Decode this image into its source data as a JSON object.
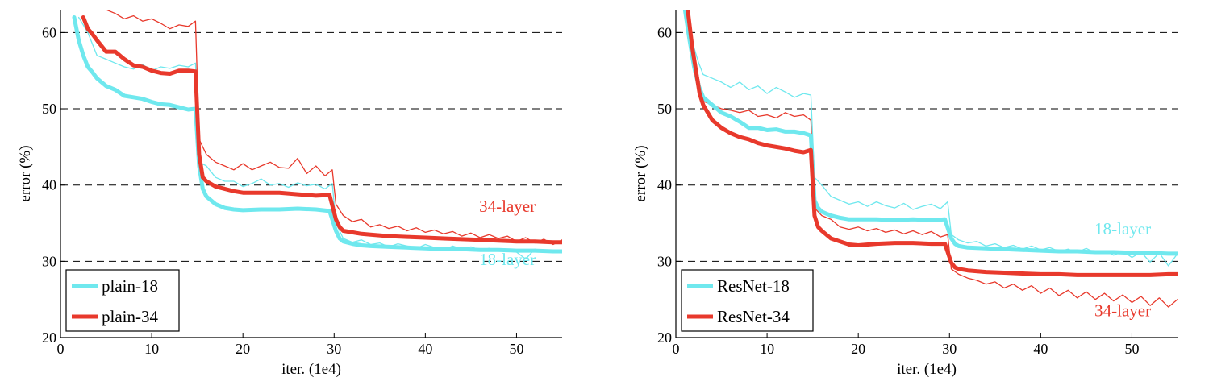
{
  "colors": {
    "cyan": "#6fe8ee",
    "red": "#e8392c",
    "grid": "#000000"
  },
  "chart_data": [
    {
      "type": "line",
      "xlabel": "iter. (1e4)",
      "ylabel": "error (%)",
      "xlim": [
        0,
        55
      ],
      "ylim": [
        20,
        63
      ],
      "xticks": [
        0,
        10,
        20,
        30,
        40,
        50
      ],
      "yticks": [
        20,
        30,
        40,
        50,
        60
      ],
      "grid": "horizontal dashed",
      "legend_position": "bottom-left",
      "annotations": [
        {
          "text": "34-layer",
          "x": 49,
          "y": 36.5,
          "color": "#e8392c"
        },
        {
          "text": "18-layer",
          "x": 49,
          "y": 29.5,
          "color": "#6fe8ee"
        }
      ],
      "series": [
        {
          "name": "plain-18",
          "style": "thick",
          "color": "#6fe8ee",
          "x": [
            1.5,
            2,
            2.5,
            3,
            3.5,
            4,
            5,
            6,
            7,
            8,
            9,
            10,
            11,
            12,
            13,
            14,
            14.8,
            15.2,
            15.6,
            16,
            17,
            18,
            19,
            20,
            22,
            24,
            26,
            28,
            29.5,
            30.2,
            30.6,
            31,
            32,
            33,
            34,
            36,
            38,
            40,
            42,
            44,
            46,
            48,
            50,
            52,
            54,
            55
          ],
          "y": [
            62,
            59,
            57,
            55.5,
            54.8,
            54,
            53,
            52.5,
            51.7,
            51.5,
            51.3,
            50.9,
            50.6,
            50.5,
            50.2,
            49.9,
            50,
            42.5,
            39.5,
            38.5,
            37.5,
            37,
            36.8,
            36.7,
            36.8,
            36.8,
            36.9,
            36.8,
            36.6,
            34,
            33,
            32.6,
            32.3,
            32.1,
            32,
            31.9,
            31.8,
            31.7,
            31.6,
            31.6,
            31.5,
            31.5,
            31.4,
            31.4,
            31.3,
            31.3
          ]
        },
        {
          "name": "plain-34",
          "style": "thick",
          "color": "#e8392c",
          "x": [
            2.5,
            3,
            3.5,
            4,
            5,
            6,
            7,
            8,
            9,
            10,
            11,
            12,
            13,
            14,
            14.8,
            15.2,
            15.6,
            16,
            17,
            18,
            19,
            20,
            22,
            24,
            26,
            28,
            29.5,
            30.2,
            30.6,
            31,
            32,
            33,
            34,
            36,
            38,
            40,
            42,
            44,
            46,
            48,
            50,
            52,
            54,
            55
          ],
          "y": [
            62,
            60.5,
            59.8,
            59,
            57.5,
            57.5,
            56.5,
            55.7,
            55.5,
            55,
            54.7,
            54.6,
            55,
            55,
            54.9,
            44,
            41,
            40.5,
            39.8,
            39.5,
            39.2,
            39,
            39,
            39,
            38.8,
            38.6,
            38.7,
            35.5,
            34.5,
            34,
            33.8,
            33.6,
            33.5,
            33.3,
            33.2,
            33.1,
            33,
            32.9,
            32.8,
            32.7,
            32.6,
            32.6,
            32.5,
            32.5
          ]
        },
        {
          "name": "plain-18 (val)",
          "style": "thin",
          "color": "#6fe8ee",
          "x": [
            2,
            3,
            4,
            5,
            6,
            7,
            8,
            9,
            10,
            11,
            12,
            13,
            14,
            14.8,
            15.2,
            16,
            17,
            18,
            19,
            20,
            21,
            22,
            23,
            24,
            25,
            26,
            27,
            28,
            29,
            29.8,
            30.2,
            31,
            32,
            33,
            34,
            35,
            36,
            37,
            38,
            39,
            40,
            41,
            42,
            43,
            44,
            45,
            46,
            47,
            48,
            49,
            50,
            51,
            52,
            53,
            54,
            55
          ],
          "y": [
            62,
            60,
            57,
            56.5,
            56,
            55.5,
            55.2,
            55.8,
            55,
            55.5,
            55.3,
            55.7,
            55.5,
            56,
            43,
            42.5,
            41,
            40.5,
            40.5,
            39.8,
            40.2,
            40.8,
            40,
            40.2,
            39.7,
            40.3,
            39.9,
            40.1,
            39.5,
            40.2,
            35,
            33,
            32.5,
            32.8,
            32.2,
            32.4,
            31.9,
            32.3,
            32,
            31.7,
            32.2,
            31.8,
            31.5,
            32,
            31.6,
            31.9,
            31.5,
            31.7,
            31.4,
            31.6,
            31.2,
            30.3,
            31.6,
            31.3,
            31.4,
            31.2
          ]
        },
        {
          "name": "plain-34 (val)",
          "style": "thin",
          "color": "#e8392c",
          "x": [
            5,
            6,
            7,
            8,
            9,
            10,
            11,
            12,
            13,
            14,
            14.8,
            15.2,
            16,
            17,
            18,
            19,
            20,
            21,
            22,
            23,
            24,
            25,
            26,
            27,
            28,
            29,
            29.8,
            30.2,
            31,
            32,
            33,
            34,
            35,
            36,
            37,
            38,
            39,
            40,
            41,
            42,
            43,
            44,
            45,
            46,
            47,
            48,
            49,
            50,
            51,
            52,
            53,
            54,
            55
          ],
          "y": [
            63,
            62.5,
            61.8,
            62.2,
            61.5,
            61.8,
            61.2,
            60.5,
            61,
            60.8,
            61.5,
            46,
            44,
            43,
            42.5,
            42,
            42.8,
            42,
            42.5,
            43,
            42.3,
            42.2,
            43.5,
            41.5,
            42.5,
            41.2,
            42,
            37.5,
            36,
            35.2,
            35.5,
            34.5,
            34.8,
            34.3,
            34.6,
            34,
            34.4,
            33.8,
            34.1,
            33.6,
            33.9,
            33.3,
            33.7,
            33.1,
            33.5,
            33,
            33.3,
            32.6,
            33.1,
            32.4,
            32.9,
            32.2,
            32.8
          ]
        }
      ]
    },
    {
      "type": "line",
      "xlabel": "iter. (1e4)",
      "ylabel": "error (%)",
      "xlim": [
        0,
        55
      ],
      "ylim": [
        20,
        63
      ],
      "xticks": [
        0,
        10,
        20,
        30,
        40,
        50
      ],
      "yticks": [
        20,
        30,
        40,
        50,
        60
      ],
      "grid": "horizontal dashed",
      "legend_position": "bottom-left",
      "annotations": [
        {
          "text": "18-layer",
          "x": 49,
          "y": 33.5,
          "color": "#6fe8ee"
        },
        {
          "text": "34-layer",
          "x": 49,
          "y": 22.8,
          "color": "#e8392c"
        }
      ],
      "series": [
        {
          "name": "ResNet-18",
          "style": "thick",
          "color": "#6fe8ee",
          "x": [
            1,
            1.5,
            2,
            2.5,
            3,
            3.5,
            4,
            5,
            6,
            7,
            8,
            9,
            10,
            11,
            12,
            13,
            14,
            14.8,
            15.2,
            15.6,
            16,
            17,
            18,
            19,
            20,
            22,
            24,
            26,
            28,
            29.5,
            30.2,
            30.6,
            31,
            32,
            34,
            36,
            38,
            40,
            42,
            44,
            46,
            48,
            50,
            52,
            54,
            55
          ],
          "y": [
            63,
            59,
            55.5,
            53,
            51.5,
            51,
            50.5,
            49.5,
            49,
            48.3,
            47.5,
            47.5,
            47.2,
            47.3,
            47,
            47,
            46.8,
            46.5,
            38,
            37,
            36.5,
            36,
            35.7,
            35.5,
            35.5,
            35.5,
            35.4,
            35.5,
            35.4,
            35.5,
            33,
            32.3,
            32,
            31.8,
            31.7,
            31.6,
            31.5,
            31.4,
            31.3,
            31.3,
            31.2,
            31.2,
            31.1,
            31.1,
            31,
            31
          ]
        },
        {
          "name": "ResNet-34",
          "style": "thick",
          "color": "#e8392c",
          "x": [
            1.3,
            1.8,
            2.2,
            2.6,
            3,
            3.5,
            4,
            5,
            6,
            7,
            8,
            9,
            10,
            11,
            12,
            13,
            14,
            14.8,
            15.2,
            15.6,
            16,
            17,
            18,
            19,
            20,
            22,
            24,
            26,
            28,
            29.5,
            30.2,
            30.6,
            31,
            32,
            34,
            36,
            38,
            40,
            42,
            44,
            46,
            48,
            50,
            52,
            54,
            55
          ],
          "y": [
            63,
            58,
            55,
            52,
            50.5,
            49.5,
            48.5,
            47.5,
            46.8,
            46.3,
            46,
            45.5,
            45.2,
            45,
            44.8,
            44.5,
            44.3,
            44.6,
            36,
            34.5,
            34,
            33,
            32.6,
            32.2,
            32.1,
            32.3,
            32.4,
            32.4,
            32.3,
            32.3,
            29.8,
            29.2,
            29,
            28.8,
            28.6,
            28.5,
            28.4,
            28.3,
            28.3,
            28.2,
            28.2,
            28.2,
            28.2,
            28.2,
            28.3,
            28.3
          ]
        },
        {
          "name": "ResNet-18 (val)",
          "style": "thin",
          "color": "#6fe8ee",
          "x": [
            1.5,
            2,
            2.5,
            3,
            4,
            5,
            6,
            7,
            8,
            9,
            10,
            11,
            12,
            13,
            14,
            14.8,
            15.2,
            16,
            17,
            18,
            19,
            20,
            21,
            22,
            23,
            24,
            25,
            26,
            27,
            28,
            29,
            29.8,
            30.2,
            31,
            32,
            33,
            34,
            35,
            36,
            37,
            38,
            39,
            40,
            41,
            42,
            43,
            44,
            45,
            46,
            47,
            48,
            49,
            50,
            51,
            52,
            53,
            54,
            55
          ],
          "y": [
            61,
            58,
            56,
            54.5,
            54,
            53.5,
            52.8,
            53.5,
            52.5,
            53,
            52,
            52.8,
            52.2,
            51.5,
            52,
            51.8,
            41,
            40,
            38.5,
            38,
            37.5,
            37.8,
            37.2,
            37.8,
            37.3,
            37,
            37.6,
            36.8,
            37.2,
            37.5,
            36.9,
            37.8,
            33.5,
            32.8,
            32.4,
            32.6,
            32,
            32.3,
            31.8,
            32.1,
            31.6,
            32,
            31.5,
            31.8,
            31.3,
            31.6,
            31.2,
            31.7,
            31.1,
            31.4,
            30.8,
            31.3,
            30.5,
            31.2,
            29.9,
            31.1,
            29.4,
            31
          ]
        },
        {
          "name": "ResNet-34 (val)",
          "style": "thin",
          "color": "#e8392c",
          "x": [
            2,
            2.5,
            3,
            4,
            5,
            6,
            7,
            8,
            9,
            10,
            11,
            12,
            13,
            14,
            14.8,
            15.2,
            16,
            17,
            18,
            19,
            20,
            21,
            22,
            23,
            24,
            25,
            26,
            27,
            28,
            29,
            29.8,
            30.2,
            31,
            32,
            33,
            34,
            35,
            36,
            37,
            38,
            39,
            40,
            41,
            42,
            43,
            44,
            45,
            46,
            47,
            48,
            49,
            50,
            51,
            52,
            53,
            54,
            55
          ],
          "y": [
            57,
            54,
            51,
            50.5,
            50,
            49.8,
            49.5,
            49.8,
            49,
            49.2,
            48.8,
            49.5,
            49,
            49.2,
            48.5,
            37,
            36,
            35.5,
            34.5,
            34.2,
            34.5,
            34,
            34.3,
            33.8,
            34.1,
            33.6,
            34,
            33.5,
            33.9,
            33.2,
            33.5,
            29,
            28.3,
            27.8,
            27.5,
            27,
            27.3,
            26.5,
            27,
            26.2,
            26.8,
            25.8,
            26.5,
            25.5,
            26.2,
            25.2,
            26,
            25,
            25.8,
            24.8,
            25.6,
            24.6,
            25.4,
            24.2,
            25.2,
            24,
            25
          ]
        }
      ]
    }
  ]
}
